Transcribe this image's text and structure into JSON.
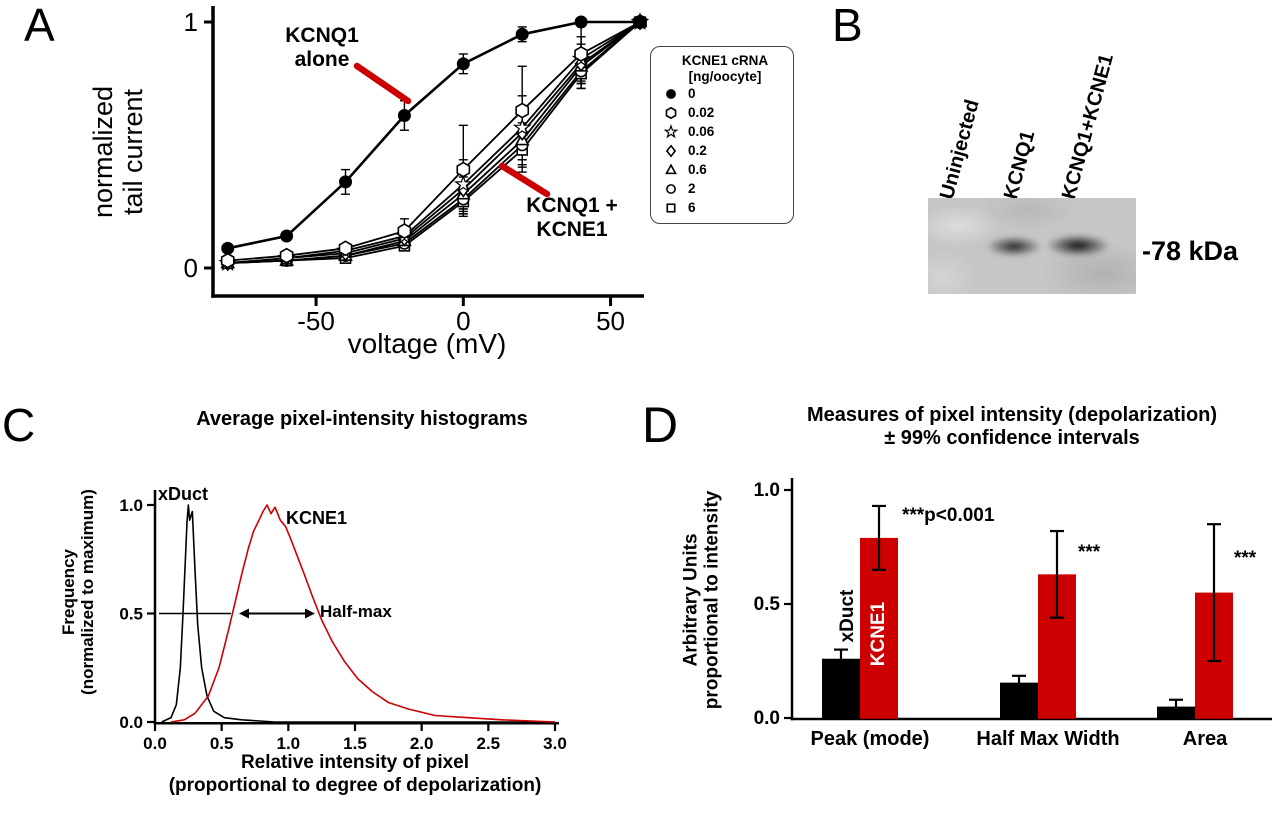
{
  "colors": {
    "red": "#cc0000",
    "black": "#000000",
    "blot_bg": "#c6c6c6"
  },
  "figure": {
    "panel_a": {
      "label": "A",
      "y_label_1": "normalized",
      "y_label_2": "tail current",
      "x_label": "voltage (mV)",
      "ann_alone_1": "KCNQ1",
      "ann_alone_2": "alone",
      "ann_plus_1": "KCNQ1 +",
      "ann_plus_2": "KCNE1",
      "legend_title_1": "KCNE1 cRNA",
      "legend_title_2": "[ng/oocyte]"
    },
    "panel_b": {
      "label": "B",
      "lane_1": "Uninjected",
      "lane_2": "KCNQ1",
      "lane_3": "KCNQ1+KCNE1",
      "marker": "-78 kDa"
    },
    "panel_c": {
      "label": "C",
      "title": "Average pixel-intensity histograms",
      "y_label_1": "Frequency",
      "y_label_2": "(normalized to maximum)",
      "x_label_1": "Relative intensity of pixel",
      "x_label_2": "(proportional to degree of depolarization)",
      "curve1_label": "xDuct",
      "curve2_label": "KCNE1",
      "halfmax_label": "Half-max"
    },
    "panel_d": {
      "label": "D",
      "title_1": "Measures of pixel intensity (depolarization)",
      "title_2": "± 99% confidence intervals",
      "y_label_1": "Arbitrary Units",
      "y_label_2": "proportional to intensity",
      "sig_main": "***p<0.001",
      "sig_2": "***",
      "sig_3": "***",
      "bar1_label": "xDuct",
      "bar2_label": "KCNE1"
    }
  },
  "chart_data": [
    {
      "panel": "A",
      "type": "line",
      "xlabel": "voltage (mV)",
      "ylabel": "normalized tail current",
      "legend_title": "KCNE1 cRNA [ng/oocyte]",
      "x": [
        -80,
        -60,
        -40,
        -20,
        0,
        20,
        40,
        60
      ],
      "xticks": [
        -50,
        0,
        50
      ],
      "yticks": [
        0,
        1
      ],
      "xlim": [
        -85,
        60
      ],
      "ylim": [
        0,
        1.05
      ],
      "series": [
        {
          "name": "0",
          "symbol": "filled-circle",
          "values": [
            0.08,
            0.13,
            0.35,
            0.62,
            0.83,
            0.95,
            1.0,
            1.0
          ],
          "errors": [
            0,
            0,
            0.05,
            0.06,
            0.04,
            0.03,
            0,
            0
          ]
        },
        {
          "name": "0.02",
          "symbol": "open-hexagon",
          "values": [
            0.03,
            0.05,
            0.08,
            0.15,
            0.4,
            0.64,
            0.87,
            1.0
          ],
          "errors": [
            0,
            0,
            0,
            0.05,
            0.18,
            0.18,
            0.12,
            0
          ]
        },
        {
          "name": "0.06",
          "symbol": "open-star",
          "values": [
            0.02,
            0.04,
            0.07,
            0.13,
            0.34,
            0.57,
            0.85,
            1.0
          ],
          "errors": [
            0,
            0,
            0,
            0.04,
            0.1,
            0.13,
            0.09,
            0
          ]
        },
        {
          "name": "0.2",
          "symbol": "open-diamond",
          "values": [
            0.02,
            0.04,
            0.06,
            0.12,
            0.32,
            0.55,
            0.83,
            1.0
          ],
          "errors": [
            0,
            0,
            0,
            0.03,
            0.08,
            0.11,
            0.08,
            0
          ]
        },
        {
          "name": "0.6",
          "symbol": "open-triangle",
          "values": [
            0.02,
            0.03,
            0.05,
            0.11,
            0.3,
            0.52,
            0.82,
            1.0
          ],
          "errors": [
            0,
            0,
            0,
            0.03,
            0.07,
            0.1,
            0.07,
            0
          ]
        },
        {
          "name": "2",
          "symbol": "open-circle",
          "values": [
            0.02,
            0.03,
            0.05,
            0.1,
            0.28,
            0.5,
            0.8,
            1.0
          ],
          "errors": [
            0,
            0,
            0,
            0.03,
            0.06,
            0.09,
            0.07,
            0
          ]
        },
        {
          "name": "6",
          "symbol": "open-square",
          "values": [
            0.02,
            0.03,
            0.04,
            0.09,
            0.27,
            0.48,
            0.79,
            1.0
          ],
          "errors": [
            0,
            0,
            0,
            0.02,
            0.06,
            0.09,
            0.06,
            0
          ]
        }
      ]
    },
    {
      "panel": "C",
      "type": "line",
      "title": "Average pixel-intensity histograms",
      "xlabel": "Relative intensity of pixel (proportional to degree of depolarization)",
      "ylabel": "Frequency (normalized to maximum)",
      "xticks": [
        0,
        0.5,
        1,
        1.5,
        2,
        2.5,
        3
      ],
      "yticks": [
        0,
        0.5,
        1
      ],
      "xlim": [
        0,
        3
      ],
      "ylim": [
        0,
        1.08
      ],
      "series": [
        {
          "name": "xDuct",
          "color": "#000000",
          "points": [
            [
              0.05,
              0
            ],
            [
              0.12,
              0.02
            ],
            [
              0.16,
              0.08
            ],
            [
              0.19,
              0.25
            ],
            [
              0.21,
              0.5
            ],
            [
              0.23,
              0.78
            ],
            [
              0.24,
              0.92
            ],
            [
              0.25,
              1.0
            ],
            [
              0.26,
              0.93
            ],
            [
              0.28,
              0.97
            ],
            [
              0.3,
              0.7
            ],
            [
              0.32,
              0.45
            ],
            [
              0.35,
              0.25
            ],
            [
              0.39,
              0.12
            ],
            [
              0.44,
              0.05
            ],
            [
              0.52,
              0.02
            ],
            [
              0.65,
              0.01
            ],
            [
              0.9,
              0
            ],
            [
              3.0,
              0
            ]
          ]
        },
        {
          "name": "KCNE1",
          "color": "#cc0000",
          "points": [
            [
              0.12,
              0
            ],
            [
              0.22,
              0.01
            ],
            [
              0.3,
              0.04
            ],
            [
              0.4,
              0.12
            ],
            [
              0.48,
              0.25
            ],
            [
              0.55,
              0.42
            ],
            [
              0.6,
              0.55
            ],
            [
              0.65,
              0.68
            ],
            [
              0.7,
              0.8
            ],
            [
              0.74,
              0.88
            ],
            [
              0.78,
              0.93
            ],
            [
              0.81,
              0.97
            ],
            [
              0.84,
              1.0
            ],
            [
              0.87,
              0.96
            ],
            [
              0.9,
              0.99
            ],
            [
              0.94,
              0.93
            ],
            [
              0.98,
              0.9
            ],
            [
              1.02,
              0.84
            ],
            [
              1.07,
              0.76
            ],
            [
              1.12,
              0.68
            ],
            [
              1.18,
              0.58
            ],
            [
              1.25,
              0.47
            ],
            [
              1.33,
              0.37
            ],
            [
              1.42,
              0.28
            ],
            [
              1.52,
              0.2
            ],
            [
              1.63,
              0.14
            ],
            [
              1.75,
              0.09
            ],
            [
              1.9,
              0.06
            ],
            [
              2.1,
              0.03
            ],
            [
              2.35,
              0.02
            ],
            [
              2.6,
              0.01
            ],
            [
              3.0,
              0
            ]
          ]
        }
      ],
      "annotations": {
        "halfmax_y": 0.5,
        "black_line_x": [
          0.03,
          0.57
        ],
        "arrow_x": [
          0.63,
          1.2
        ],
        "halfmax_label": "Half-max"
      }
    },
    {
      "panel": "D",
      "type": "bar",
      "title": "Measures of pixel intensity (depolarization) ± 99% confidence intervals",
      "ylabel": "Arbitrary Units proportional to intensity",
      "categories": [
        "Peak (mode)",
        "Half Max Width",
        "Area"
      ],
      "yticks": [
        0,
        0.5,
        1
      ],
      "ylim": [
        0,
        1.0
      ],
      "series": [
        {
          "name": "xDuct",
          "color": "#000000",
          "values": [
            0.26,
            0.155,
            0.05
          ],
          "errors": [
            0.04,
            0.03,
            0.03
          ]
        },
        {
          "name": "KCNE1",
          "color": "#cc0000",
          "values": [
            0.79,
            0.63,
            0.55
          ],
          "errors": [
            0.14,
            0.19,
            0.3
          ]
        }
      ],
      "significance": [
        "***p<0.001",
        "***",
        "***"
      ]
    }
  ]
}
